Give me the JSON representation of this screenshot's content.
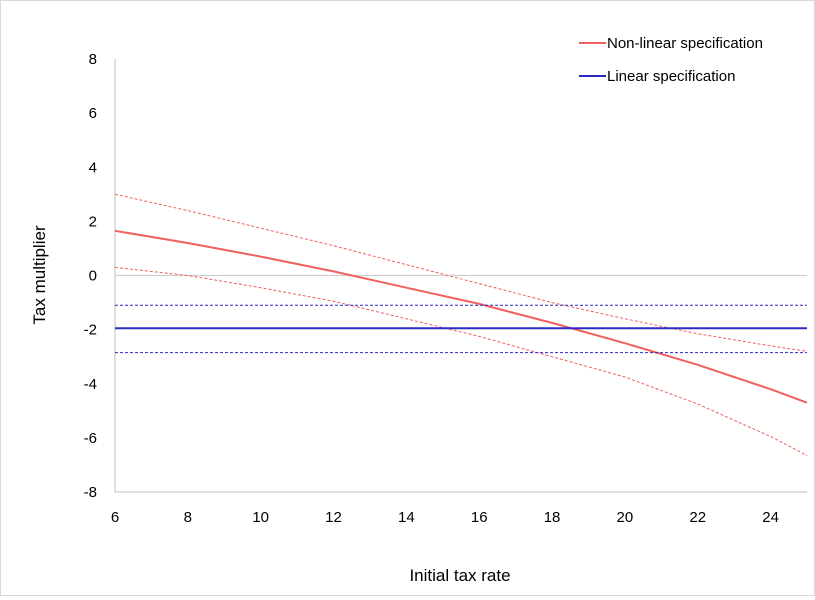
{
  "chart_data": {
    "type": "line",
    "title": "",
    "xlabel": "Initial tax rate",
    "ylabel": "Tax multiplier",
    "xlim": [
      6,
      25
    ],
    "ylim": [
      -8,
      8
    ],
    "x_ticks": [
      "6",
      "8",
      "10",
      "12",
      "14",
      "16",
      "18",
      "20",
      "22",
      "24"
    ],
    "y_ticks": [
      "8",
      "6",
      "4",
      "2",
      "0",
      "-2",
      "-4",
      "-6",
      "-8"
    ],
    "grid": false,
    "legend_position": "top-right",
    "series": [
      {
        "name": "Non-linear specification",
        "color": "#f0605c",
        "style": "solid",
        "x": [
          6,
          8,
          10,
          12,
          14,
          16,
          18,
          20,
          22,
          24,
          25
        ],
        "y": [
          1.65,
          1.2,
          0.7,
          0.15,
          -0.45,
          -1.05,
          -1.75,
          -2.5,
          -3.3,
          -4.2,
          -4.7
        ]
      },
      {
        "name": "",
        "color": "#f0605c",
        "style": "dashed",
        "x": [
          6,
          8,
          10,
          12,
          14,
          16,
          18,
          20,
          22,
          24,
          25
        ],
        "y": [
          3.0,
          2.4,
          1.75,
          1.1,
          0.4,
          -0.3,
          -1.0,
          -1.6,
          -2.15,
          -2.6,
          -2.8
        ]
      },
      {
        "name": "",
        "color": "#f0605c",
        "style": "dashed",
        "x": [
          6,
          8,
          10,
          12,
          14,
          16,
          18,
          20,
          22,
          24,
          25
        ],
        "y": [
          0.3,
          0.0,
          -0.45,
          -0.95,
          -1.6,
          -2.25,
          -3.0,
          -3.75,
          -4.75,
          -5.95,
          -6.65
        ]
      },
      {
        "name": "Linear specification",
        "color": "#2b2bc4",
        "style": "solid",
        "x": [
          6,
          25
        ],
        "y": [
          -1.95,
          -1.95
        ]
      },
      {
        "name": "",
        "color": "#2b2bc4",
        "style": "dashed",
        "x": [
          6,
          25
        ],
        "y": [
          -1.1,
          -1.1
        ]
      },
      {
        "name": "",
        "color": "#2b2bc4",
        "style": "dashed",
        "x": [
          6,
          25
        ],
        "y": [
          -2.85,
          -2.85
        ]
      }
    ]
  }
}
